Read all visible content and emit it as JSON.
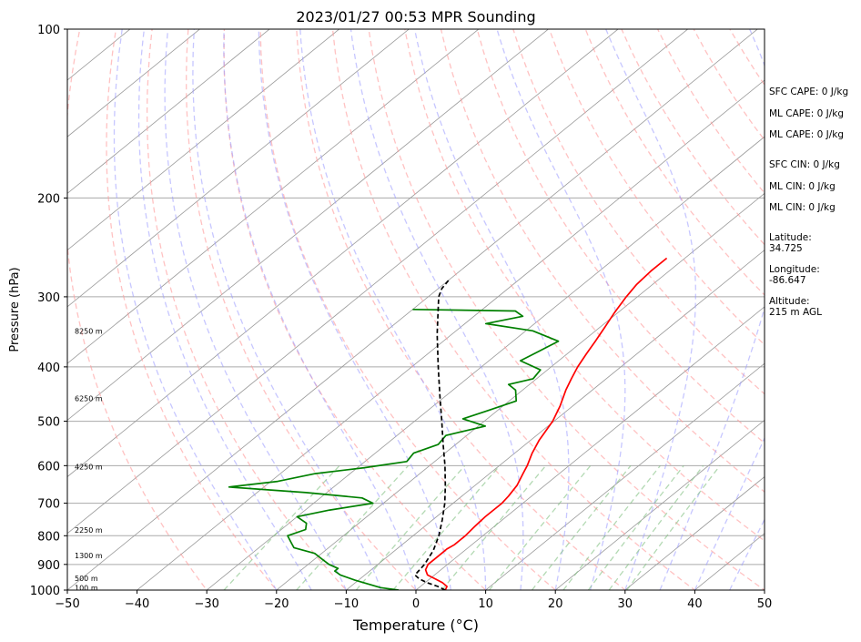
{
  "chart_data": {
    "type": "skew-t",
    "title": "2023/01/27 00:53 MPR Sounding",
    "xlabel": "Temperature (°C)",
    "ylabel": "Pressure (hPa)",
    "xlim": [
      -50,
      50
    ],
    "ylim": [
      1000,
      100
    ],
    "y_scale": "log",
    "grid": true,
    "x_ticks": [
      "−50",
      "−40",
      "−30",
      "−20",
      "−10",
      "0",
      "10",
      "20",
      "30",
      "40",
      "50"
    ],
    "y_ticks": [
      "100",
      "200",
      "300",
      "400",
      "500",
      "600",
      "700",
      "800",
      "900",
      "1000"
    ],
    "colors": {
      "temperature": "#ff0000",
      "dewpoint": "#008000",
      "parcel": "#000000",
      "dry_adiabats": "#ff9999",
      "moist_adiabats": "#9999ff",
      "mixing_ratio": "#80c080",
      "isotherms": "#999999"
    },
    "series": [
      {
        "key": "temperature",
        "points": [
          [
            1000,
            4.2
          ],
          [
            985,
            3.8
          ],
          [
            970,
            2.5
          ],
          [
            955,
            0.8
          ],
          [
            940,
            -1.0
          ],
          [
            920,
            -2.2
          ],
          [
            900,
            -2.8
          ],
          [
            880,
            -2.8
          ],
          [
            860,
            -2.8
          ],
          [
            845,
            -2.8
          ],
          [
            830,
            -2.5
          ],
          [
            800,
            -2.5
          ],
          [
            770,
            -2.8
          ],
          [
            740,
            -3.0
          ],
          [
            700,
            -3.0
          ],
          [
            680,
            -3.3
          ],
          [
            650,
            -4.0
          ],
          [
            620,
            -5.2
          ],
          [
            600,
            -6.0
          ],
          [
            570,
            -7.5
          ],
          [
            540,
            -8.8
          ],
          [
            500,
            -10.2
          ],
          [
            470,
            -11.8
          ],
          [
            440,
            -13.8
          ],
          [
            420,
            -15.0
          ],
          [
            400,
            -16.2
          ],
          [
            380,
            -17.2
          ],
          [
            360,
            -18.2
          ],
          [
            340,
            -19.3
          ],
          [
            320,
            -20.5
          ],
          [
            300,
            -21.6
          ],
          [
            285,
            -22.3
          ],
          [
            270,
            -22.6
          ],
          [
            256,
            -22.6
          ]
        ]
      },
      {
        "key": "dewpoint",
        "points": [
          [
            1000,
            -2.5
          ],
          [
            990,
            -5.5
          ],
          [
            975,
            -8.0
          ],
          [
            960,
            -10.5
          ],
          [
            940,
            -13.5
          ],
          [
            925,
            -15.0
          ],
          [
            915,
            -15.0
          ],
          [
            900,
            -17.0
          ],
          [
            880,
            -19.0
          ],
          [
            860,
            -21.0
          ],
          [
            840,
            -25.0
          ],
          [
            820,
            -26.5
          ],
          [
            800,
            -28.0
          ],
          [
            780,
            -26.5
          ],
          [
            760,
            -27.5
          ],
          [
            740,
            -30.0
          ],
          [
            720,
            -26.5
          ],
          [
            700,
            -21.5
          ],
          [
            685,
            -24.0
          ],
          [
            670,
            -33.0
          ],
          [
            655,
            -45.0
          ],
          [
            640,
            -39.0
          ],
          [
            620,
            -35.0
          ],
          [
            605,
            -29.0
          ],
          [
            590,
            -24.0
          ],
          [
            570,
            -24.5
          ],
          [
            550,
            -22.5
          ],
          [
            530,
            -23.0
          ],
          [
            510,
            -19.0
          ],
          [
            495,
            -23.5
          ],
          [
            480,
            -21.5
          ],
          [
            460,
            -19.0
          ],
          [
            440,
            -21.0
          ],
          [
            430,
            -23.0
          ],
          [
            420,
            -20.5
          ],
          [
            405,
            -21.0
          ],
          [
            390,
            -25.5
          ],
          [
            375,
            -24.5
          ],
          [
            360,
            -23.5
          ],
          [
            345,
            -29.0
          ],
          [
            335,
            -37.0
          ],
          [
            325,
            -33.0
          ],
          [
            318,
            -35.0
          ],
          [
            316,
            -50.0
          ]
        ]
      },
      {
        "key": "parcel",
        "points": [
          [
            1000,
            4.2
          ],
          [
            985,
            2.5
          ],
          [
            970,
            0.3
          ],
          [
            955,
            -1.5
          ],
          [
            940,
            -2.8
          ],
          [
            900,
            -3.3
          ],
          [
            850,
            -4.5
          ],
          [
            800,
            -6.3
          ],
          [
            750,
            -8.6
          ],
          [
            700,
            -11.2
          ],
          [
            650,
            -14.3
          ],
          [
            600,
            -17.8
          ],
          [
            550,
            -21.8
          ],
          [
            500,
            -26.1
          ],
          [
            450,
            -30.9
          ],
          [
            400,
            -36.2
          ],
          [
            350,
            -42.1
          ],
          [
            300,
            -48.5
          ],
          [
            290,
            -49.5
          ],
          [
            280,
            -50.0
          ]
        ]
      }
    ],
    "height_labels": [
      {
        "p": 345,
        "label": "8250 m"
      },
      {
        "p": 455,
        "label": "6250 m"
      },
      {
        "p": 603,
        "label": "4250 m"
      },
      {
        "p": 782,
        "label": "2250 m"
      },
      {
        "p": 868,
        "label": "1300 m"
      },
      {
        "p": 953,
        "label": "500 m"
      },
      {
        "p": 990,
        "label": "100 m"
      }
    ]
  },
  "indices": {
    "sfc_cape": "SFC CAPE: 0 J/kg",
    "ml_cape_1": "ML CAPE: 0 J/kg",
    "ml_cape_2": "ML CAPE: 0 J/kg",
    "sfc_cin": "SFC CIN: 0 J/kg",
    "ml_cin_1": "ML CIN: 0 J/kg",
    "ml_cin_2": "ML CIN: 0 J/kg"
  },
  "location": {
    "latitude_label": "Latitude:",
    "latitude_value": "34.725",
    "longitude_label": "Longitude:",
    "longitude_value": "-86.647",
    "altitude_label": "Altitude:",
    "altitude_value": "215 m AGL"
  }
}
